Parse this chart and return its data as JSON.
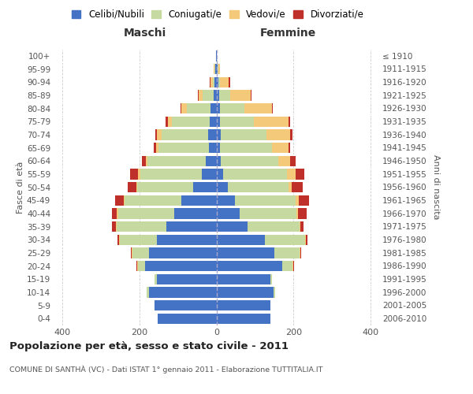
{
  "age_groups": [
    "0-4",
    "5-9",
    "10-14",
    "15-19",
    "20-24",
    "25-29",
    "30-34",
    "35-39",
    "40-44",
    "45-49",
    "50-54",
    "55-59",
    "60-64",
    "65-69",
    "70-74",
    "75-79",
    "80-84",
    "85-89",
    "90-94",
    "95-99",
    "100+"
  ],
  "birth_years": [
    "2006-2010",
    "2001-2005",
    "1996-2000",
    "1991-1995",
    "1986-1990",
    "1981-1985",
    "1976-1980",
    "1971-1975",
    "1966-1970",
    "1961-1965",
    "1956-1960",
    "1951-1955",
    "1946-1950",
    "1941-1945",
    "1936-1940",
    "1931-1935",
    "1926-1930",
    "1921-1925",
    "1916-1920",
    "1911-1915",
    "≤ 1910"
  ],
  "colors": {
    "celibi": "#4472C4",
    "coniugati": "#c5d9a0",
    "vedovi": "#f5c97a",
    "divorziati": "#c0302a"
  },
  "maschi": {
    "celibi": [
      152,
      160,
      175,
      155,
      185,
      175,
      155,
      130,
      110,
      90,
      60,
      38,
      28,
      20,
      22,
      18,
      15,
      8,
      5,
      3,
      2
    ],
    "coniugati": [
      0,
      0,
      5,
      5,
      18,
      42,
      95,
      128,
      145,
      148,
      145,
      160,
      150,
      130,
      120,
      98,
      62,
      28,
      5,
      2,
      0
    ],
    "vedovi": [
      0,
      0,
      0,
      0,
      2,
      2,
      2,
      2,
      3,
      3,
      3,
      5,
      4,
      7,
      12,
      10,
      14,
      10,
      5,
      2,
      0
    ],
    "divorziati": [
      0,
      0,
      0,
      0,
      2,
      2,
      4,
      10,
      12,
      22,
      22,
      20,
      12,
      5,
      5,
      5,
      2,
      2,
      2,
      0,
      0
    ]
  },
  "femmine": {
    "celibi": [
      140,
      140,
      148,
      140,
      170,
      150,
      125,
      80,
      60,
      48,
      30,
      18,
      12,
      10,
      12,
      10,
      10,
      8,
      5,
      3,
      2
    ],
    "coniugati": [
      0,
      0,
      5,
      5,
      28,
      65,
      105,
      135,
      148,
      158,
      158,
      165,
      148,
      135,
      118,
      88,
      62,
      28,
      5,
      2,
      0
    ],
    "vedovi": [
      0,
      0,
      0,
      0,
      2,
      2,
      2,
      2,
      4,
      7,
      8,
      22,
      32,
      42,
      62,
      88,
      72,
      52,
      22,
      5,
      0
    ],
    "divorziati": [
      0,
      0,
      0,
      0,
      2,
      2,
      4,
      8,
      22,
      28,
      28,
      22,
      14,
      5,
      5,
      5,
      2,
      2,
      3,
      0,
      0
    ]
  },
  "title": "Popolazione per età, sesso e stato civile - 2011",
  "subtitle": "COMUNE DI SANTHÀ (VC) - Dati ISTAT 1° gennaio 2011 - Elaborazione TUTTITALIA.IT",
  "xlabel_left": "Maschi",
  "xlabel_right": "Femmine",
  "ylabel_left": "Fasce di età",
  "ylabel_right": "Anni di nascita",
  "legend_labels": [
    "Celibi/Nubili",
    "Coniugati/e",
    "Vedovi/e",
    "Divorziati/e"
  ],
  "xlim": 420,
  "bg_color": "#ffffff",
  "bar_height": 0.8,
  "grid_color": "#cccccc"
}
